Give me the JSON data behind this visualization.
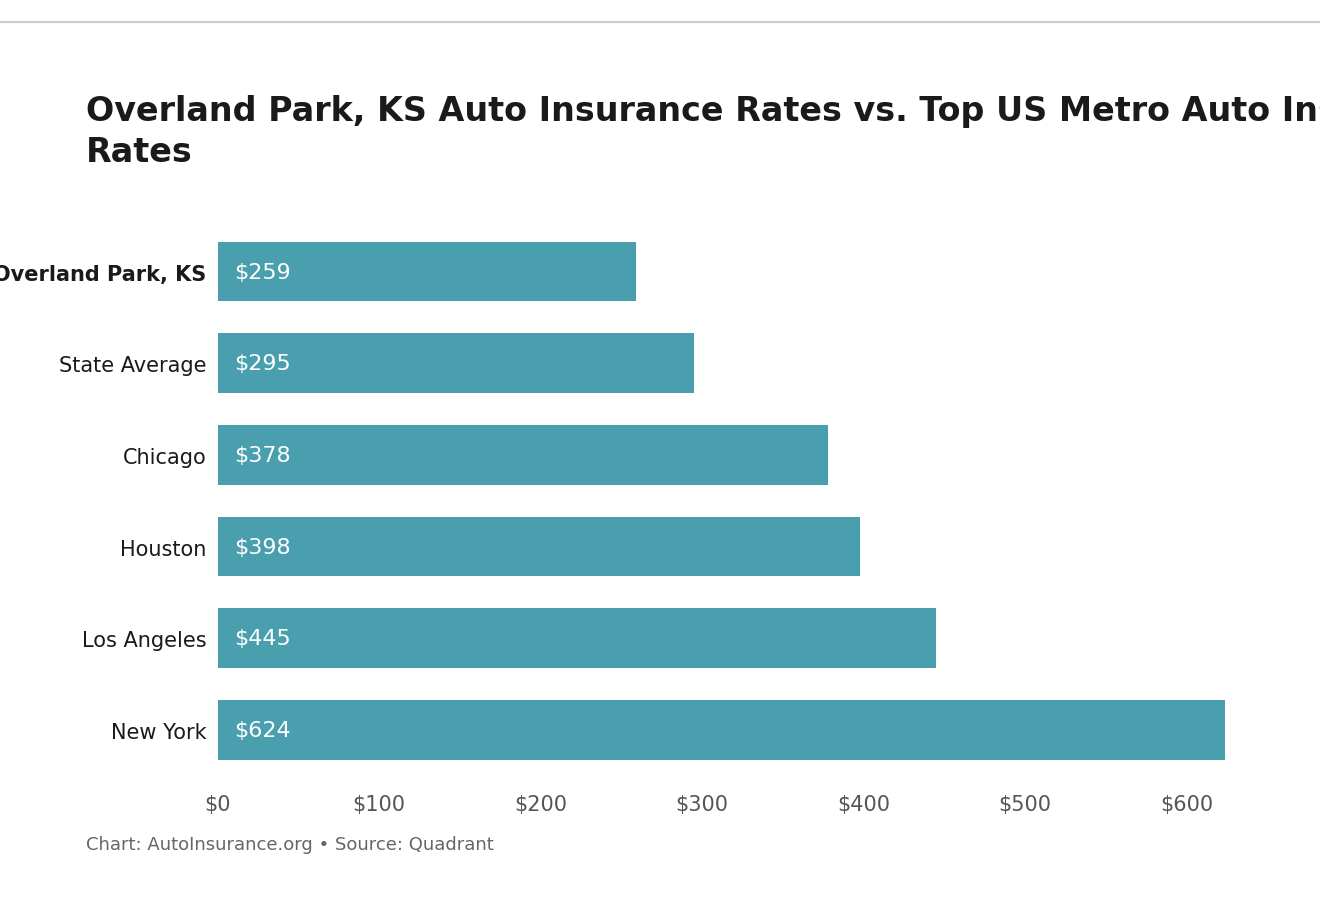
{
  "title": "Overland Park, KS Auto Insurance Rates vs. Top US Metro Auto Insurance Rates",
  "categories": [
    "Overland Park, KS",
    "State Average",
    "Chicago",
    "Houston",
    "Los Angeles",
    "New York"
  ],
  "values": [
    259,
    295,
    378,
    398,
    445,
    624
  ],
  "bar_color": "#4a9faf",
  "label_color": "#ffffff",
  "background_color": "#ffffff",
  "title_color": "#1a1a1a",
  "title_fontsize": 24,
  "label_fontsize": 16,
  "tick_label_fontsize": 15,
  "xlim": [
    0,
    650
  ],
  "xticks": [
    0,
    100,
    200,
    300,
    400,
    500,
    600
  ],
  "xtick_labels": [
    "$0",
    "$100",
    "$200",
    "$300",
    "$400",
    "$500",
    "$600"
  ],
  "source_text": "Chart: AutoInsurance.org • Source: Quadrant",
  "source_fontsize": 13,
  "source_color": "#666666",
  "grid_color": "#ffffff",
  "bar_height": 0.65,
  "first_bar_label_bold": "Overland Park, KS",
  "top_line_color": "#cccccc",
  "xtick_color": "#555555"
}
